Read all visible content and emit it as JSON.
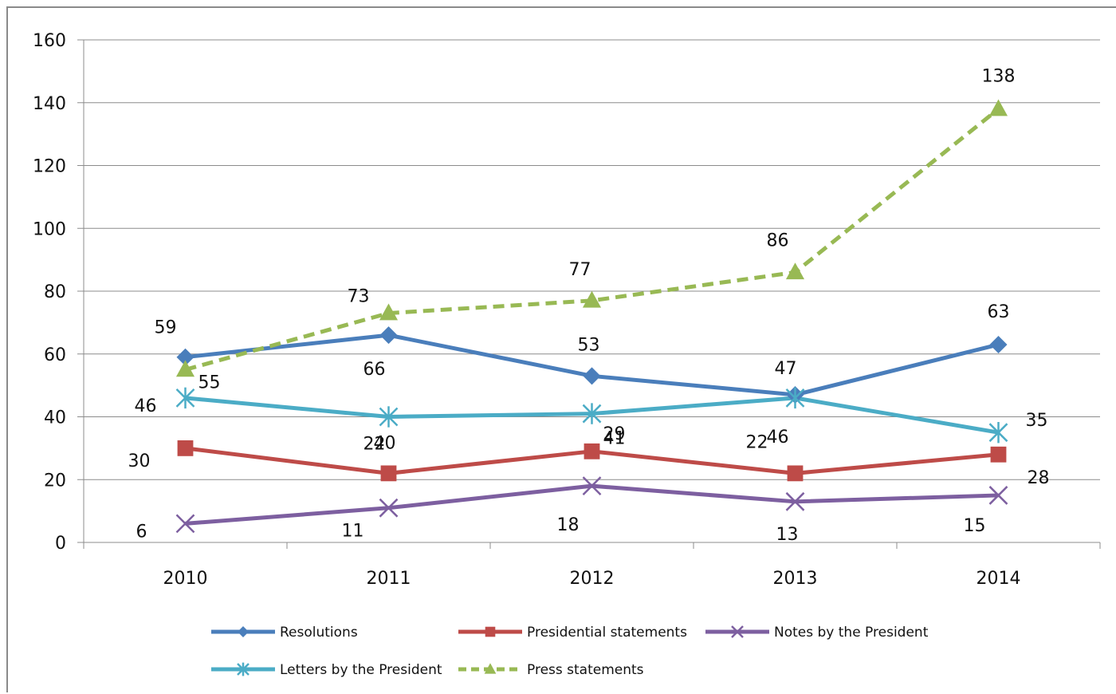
{
  "chart_data": {
    "type": "line",
    "title": "",
    "xlabel": "",
    "ylabel": "",
    "categories": [
      "2010",
      "2011",
      "2012",
      "2013",
      "2014"
    ],
    "ylim": [
      0,
      160
    ],
    "yticks": [
      0,
      20,
      40,
      60,
      80,
      100,
      120,
      140,
      160
    ],
    "grid": "horizontal",
    "legend_position": "bottom",
    "series": [
      {
        "name": "Resolutions",
        "values": [
          59,
          66,
          53,
          47,
          63
        ],
        "color": "#4a7ebb",
        "marker": "diamond",
        "dash": false
      },
      {
        "name": "Presidential statements",
        "values": [
          30,
          22,
          29,
          22,
          28
        ],
        "color": "#be4b48",
        "marker": "square",
        "dash": false
      },
      {
        "name": "Notes by the President",
        "values": [
          6,
          11,
          18,
          13,
          15
        ],
        "color": "#7d5fa0",
        "marker": "x",
        "dash": false
      },
      {
        "name": "Letters by the President",
        "values": [
          46,
          40,
          41,
          46,
          35
        ],
        "color": "#4bacc6",
        "marker": "asterisk",
        "dash": false
      },
      {
        "name": "Press statements",
        "values": [
          55,
          73,
          77,
          86,
          138
        ],
        "color": "#98b954",
        "marker": "triangle",
        "dash": true
      }
    ]
  }
}
